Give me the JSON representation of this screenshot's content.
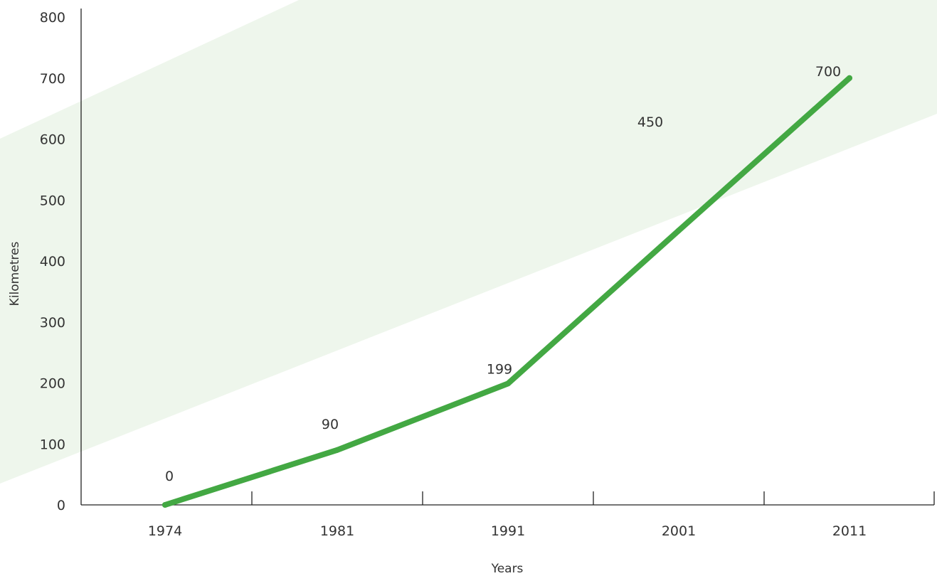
{
  "chart_data": {
    "type": "line",
    "title": "",
    "xlabel": "Years",
    "ylabel": "Kilometres",
    "categories": [
      "1974",
      "1981",
      "1991",
      "2001",
      "2011"
    ],
    "series": [
      {
        "values": [
          0,
          90,
          199,
          450,
          700
        ]
      }
    ],
    "data_labels": [
      "0",
      "90",
      "199",
      "450",
      "700"
    ],
    "y_ticks": [
      0,
      100,
      200,
      300,
      400,
      500,
      600,
      700,
      800
    ],
    "ylim": [
      0,
      800
    ],
    "grid": false,
    "legend": "none",
    "colors": {
      "line": "#43a843",
      "band": "#eef6ec",
      "axis": "#222222",
      "text": "#333333"
    }
  }
}
